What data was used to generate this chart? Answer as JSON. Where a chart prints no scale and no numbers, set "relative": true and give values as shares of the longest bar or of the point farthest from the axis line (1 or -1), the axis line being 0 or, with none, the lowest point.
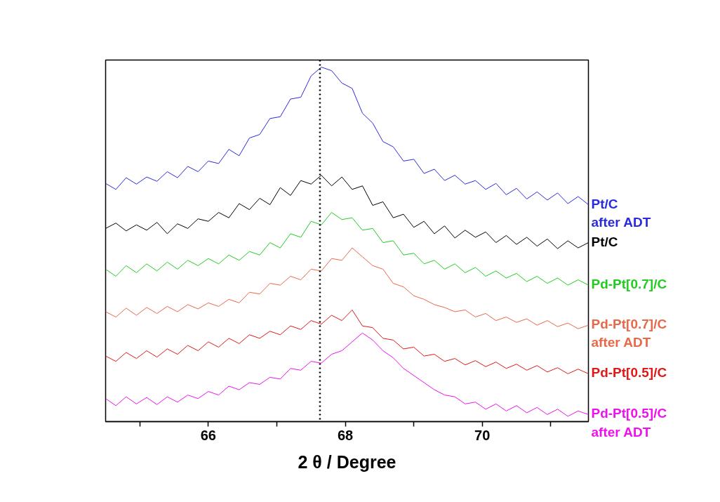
{
  "chart_data": {
    "type": "line",
    "relative": true,
    "xlabel": "2 θ / Degree",
    "xlim": [
      64.5,
      71.55
    ],
    "xticks": [
      {
        "value": 65,
        "label": null
      },
      66,
      {
        "value": 67,
        "label": null
      },
      68,
      {
        "value": 69,
        "label": null
      },
      70,
      {
        "value": 71,
        "label": null
      }
    ],
    "x": [
      64.5,
      64.65,
      64.8,
      64.95,
      65.1,
      65.25,
      65.4,
      65.55,
      65.7,
      65.85,
      66.0,
      66.15,
      66.3,
      66.45,
      66.6,
      66.75,
      66.9,
      67.05,
      67.2,
      67.35,
      67.5,
      67.65,
      67.8,
      67.95,
      68.1,
      68.25,
      68.4,
      68.55,
      68.7,
      68.85,
      69.0,
      69.15,
      69.3,
      69.45,
      69.6,
      69.75,
      69.9,
      70.05,
      70.2,
      70.35,
      70.5,
      70.65,
      70.8,
      70.95,
      71.1,
      71.25,
      71.4,
      71.55
    ],
    "series": [
      {
        "name": "Pt/C after ADT",
        "color": "#2a2ae0",
        "values": [
          0.672,
          0.655,
          0.688,
          0.67,
          0.69,
          0.678,
          0.705,
          0.688,
          0.72,
          0.705,
          0.735,
          0.728,
          0.768,
          0.75,
          0.8,
          0.81,
          0.855,
          0.86,
          0.91,
          0.915,
          0.975,
          1.0,
          0.99,
          0.955,
          0.94,
          0.87,
          0.842,
          0.79,
          0.775,
          0.735,
          0.74,
          0.7,
          0.712,
          0.68,
          0.695,
          0.67,
          0.68,
          0.655,
          0.672,
          0.64,
          0.658,
          0.628,
          0.648,
          0.625,
          0.645,
          0.615,
          0.635,
          0.612
        ]
      },
      {
        "name": "Pt/C",
        "color": "#000000",
        "values": [
          0.545,
          0.56,
          0.538,
          0.555,
          0.54,
          0.562,
          0.53,
          0.558,
          0.545,
          0.572,
          0.565,
          0.59,
          0.575,
          0.615,
          0.598,
          0.63,
          0.612,
          0.66,
          0.638,
          0.68,
          0.67,
          0.695,
          0.665,
          0.69,
          0.655,
          0.665,
          0.61,
          0.62,
          0.575,
          0.585,
          0.548,
          0.565,
          0.53,
          0.552,
          0.518,
          0.54,
          0.52,
          0.535,
          0.505,
          0.525,
          0.5,
          0.52,
          0.495,
          0.515,
          0.488,
          0.51,
          0.49,
          0.505
        ]
      },
      {
        "name": "Pd-Pt[0.7]/C",
        "color": "#22cc22",
        "values": [
          0.43,
          0.41,
          0.44,
          0.42,
          0.445,
          0.425,
          0.45,
          0.43,
          0.455,
          0.44,
          0.46,
          0.445,
          0.47,
          0.455,
          0.48,
          0.47,
          0.505,
          0.49,
          0.53,
          0.52,
          0.565,
          0.555,
          0.59,
          0.57,
          0.575,
          0.54,
          0.545,
          0.505,
          0.51,
          0.47,
          0.475,
          0.445,
          0.455,
          0.43,
          0.445,
          0.42,
          0.435,
          0.41,
          0.425,
          0.405,
          0.418,
          0.395,
          0.41,
          0.39,
          0.405,
          0.385,
          0.4,
          0.385
        ]
      },
      {
        "name": "Pd-Pt[0.7]/C after ADT",
        "color": "#e8684a",
        "values": [
          0.31,
          0.295,
          0.32,
          0.3,
          0.322,
          0.305,
          0.325,
          0.31,
          0.33,
          0.318,
          0.335,
          0.325,
          0.345,
          0.335,
          0.365,
          0.36,
          0.39,
          0.385,
          0.41,
          0.4,
          0.43,
          0.425,
          0.46,
          0.455,
          0.49,
          0.465,
          0.44,
          0.43,
          0.39,
          0.38,
          0.355,
          0.345,
          0.33,
          0.322,
          0.31,
          0.315,
          0.295,
          0.305,
          0.285,
          0.295,
          0.28,
          0.29,
          0.272,
          0.285,
          0.268,
          0.278,
          0.262,
          0.272
        ]
      },
      {
        "name": "Pd-Pt[0.5]/C",
        "color": "#e01818",
        "values": [
          0.185,
          0.17,
          0.195,
          0.178,
          0.2,
          0.182,
          0.205,
          0.19,
          0.215,
          0.2,
          0.225,
          0.21,
          0.235,
          0.22,
          0.245,
          0.235,
          0.255,
          0.245,
          0.27,
          0.26,
          0.285,
          0.275,
          0.3,
          0.285,
          0.315,
          0.27,
          0.265,
          0.235,
          0.23,
          0.205,
          0.21,
          0.185,
          0.19,
          0.17,
          0.178,
          0.16,
          0.172,
          0.155,
          0.168,
          0.15,
          0.162,
          0.145,
          0.158,
          0.14,
          0.152,
          0.135,
          0.148,
          0.135
        ]
      },
      {
        "name": "Pd-Pt[0.5]/C after ADT",
        "color": "#ee11ee",
        "values": [
          0.065,
          0.045,
          0.07,
          0.05,
          0.068,
          0.048,
          0.07,
          0.055,
          0.075,
          0.065,
          0.085,
          0.075,
          0.1,
          0.09,
          0.11,
          0.105,
          0.125,
          0.12,
          0.15,
          0.145,
          0.17,
          0.165,
          0.19,
          0.2,
          0.225,
          0.25,
          0.23,
          0.2,
          0.18,
          0.15,
          0.13,
          0.11,
          0.09,
          0.075,
          0.07,
          0.05,
          0.055,
          0.035,
          0.05,
          0.03,
          0.045,
          0.025,
          0.04,
          0.02,
          0.035,
          0.015,
          0.03,
          0.02
        ]
      }
    ],
    "ref_lines": [
      {
        "axis": "x",
        "value": 67.63,
        "color": "#000000",
        "line_style": "dotted"
      }
    ]
  }
}
